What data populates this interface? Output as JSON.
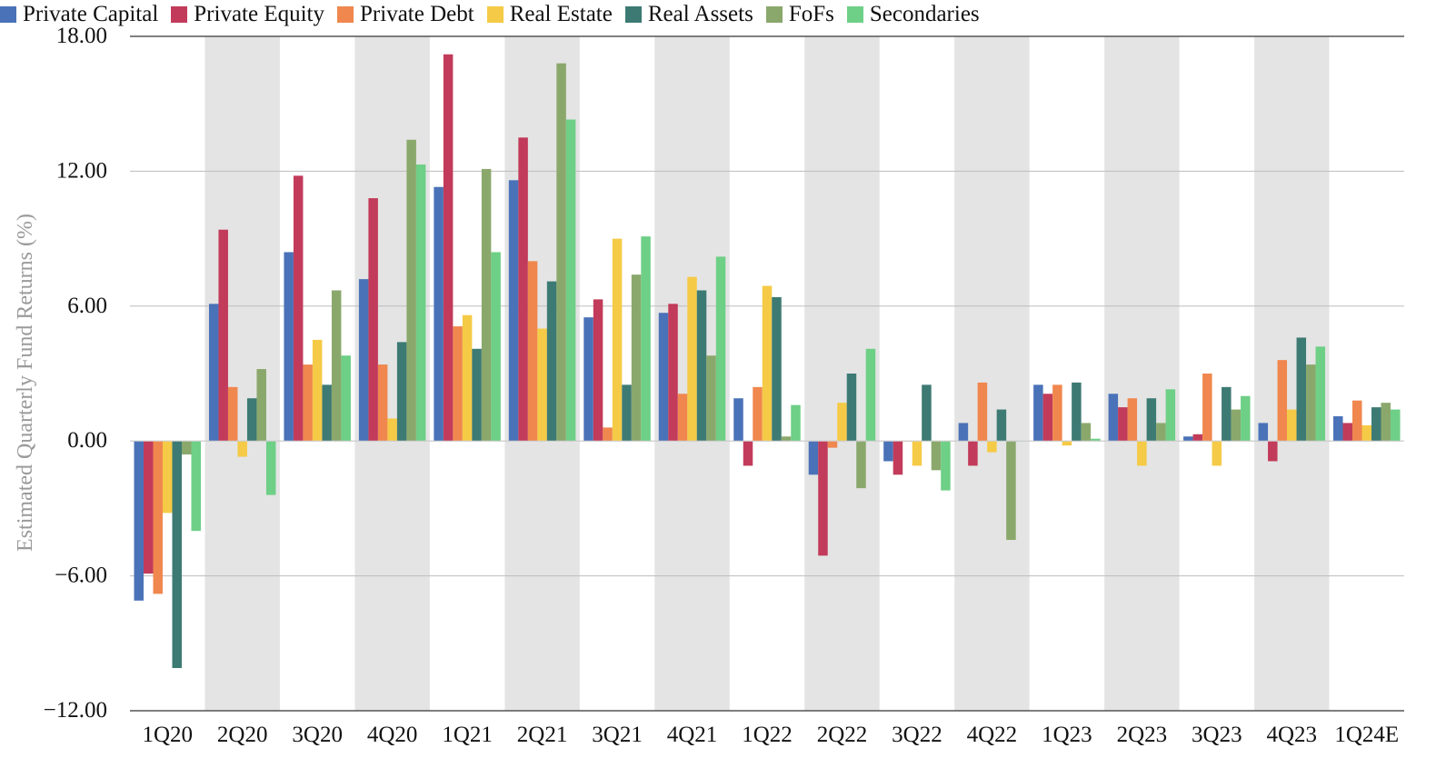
{
  "chart_data": {
    "type": "bar",
    "ylabel": "Estimated Quarterly Fund Returns (%)",
    "ylim": [
      -12,
      18
    ],
    "yticks": [
      "18.00",
      "12.00",
      "6.00",
      "0.00",
      "−6.00",
      "−12.00"
    ],
    "grid": true,
    "legend": "top-left",
    "categories": [
      "1Q20",
      "2Q20",
      "3Q20",
      "4Q20",
      "1Q21",
      "2Q21",
      "3Q21",
      "4Q21",
      "1Q22",
      "2Q22",
      "3Q22",
      "4Q22",
      "1Q23",
      "2Q23",
      "3Q23",
      "4Q23",
      "1Q24E"
    ],
    "series": [
      {
        "name": "Private Capital",
        "color": "#4a72b8",
        "values": [
          -7.1,
          6.1,
          8.4,
          7.2,
          11.3,
          11.6,
          5.5,
          5.7,
          1.9,
          -1.5,
          -0.9,
          0.8,
          2.5,
          2.1,
          0.2,
          0.8,
          1.1
        ]
      },
      {
        "name": "Private Equity",
        "color": "#c23b5a",
        "values": [
          -5.9,
          9.4,
          11.8,
          10.8,
          17.2,
          13.5,
          6.3,
          6.1,
          -1.1,
          -5.1,
          -1.5,
          -1.1,
          2.1,
          1.5,
          0.3,
          -0.9,
          0.8
        ]
      },
      {
        "name": "Private Debt",
        "color": "#f0874e",
        "values": [
          -6.8,
          2.4,
          3.4,
          3.4,
          5.1,
          8.0,
          0.6,
          2.1,
          2.4,
          -0.3,
          0.0,
          2.6,
          2.5,
          1.9,
          3.0,
          3.6,
          1.8
        ]
      },
      {
        "name": "Real Estate",
        "color": "#f5ca46",
        "values": [
          -3.2,
          -0.7,
          4.5,
          1.0,
          5.6,
          5.0,
          9.0,
          7.3,
          6.9,
          1.7,
          -1.1,
          -0.5,
          -0.2,
          -1.1,
          -1.1,
          1.4,
          0.7
        ]
      },
      {
        "name": "Real Assets",
        "color": "#3d7a74",
        "values": [
          -10.1,
          1.9,
          2.5,
          4.4,
          4.1,
          7.1,
          2.5,
          6.7,
          6.4,
          3.0,
          2.5,
          1.4,
          2.6,
          1.9,
          2.4,
          4.6,
          1.5
        ]
      },
      {
        "name": "FoFs",
        "color": "#8ba86c",
        "values": [
          -0.6,
          3.2,
          6.7,
          13.4,
          12.1,
          16.8,
          7.4,
          3.8,
          0.2,
          -2.1,
          -1.3,
          -4.4,
          0.8,
          0.8,
          1.4,
          3.4,
          1.7
        ]
      },
      {
        "name": "Secondaries",
        "color": "#6ecf86",
        "values": [
          -4.0,
          -2.4,
          3.8,
          12.3,
          8.4,
          14.3,
          9.1,
          8.2,
          1.6,
          4.1,
          -2.2,
          0.0,
          0.1,
          2.3,
          2.0,
          4.2,
          1.4
        ]
      }
    ]
  }
}
